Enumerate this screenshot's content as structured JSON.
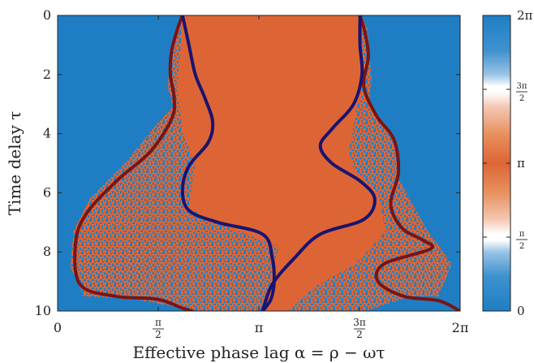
{
  "chart_data": {
    "type": "heatmap",
    "xlabel": "Effective phase lag α = ρ − ωτ",
    "ylabel": "Time delay τ",
    "x_range": [
      0,
      6.2832
    ],
    "y_range": [
      0,
      10
    ],
    "y_inverted": true,
    "x_ticks": [
      {
        "value": 0,
        "label": "0"
      },
      {
        "value": 1.5708,
        "label": "π/2",
        "num": "π",
        "den": "2"
      },
      {
        "value": 3.1416,
        "label": "π"
      },
      {
        "value": 4.7124,
        "label": "3π/2",
        "num": "3π",
        "den": "2"
      },
      {
        "value": 6.2832,
        "label": "2π"
      }
    ],
    "y_ticks": [
      {
        "value": 0,
        "label": "0"
      },
      {
        "value": 2,
        "label": "2"
      },
      {
        "value": 4,
        "label": "4"
      },
      {
        "value": 6,
        "label": "6"
      },
      {
        "value": 8,
        "label": "8"
      },
      {
        "value": 10,
        "label": "10"
      }
    ],
    "colorbar": {
      "range": [
        0,
        6.2832
      ],
      "ticks": [
        {
          "value": 0,
          "label": "0"
        },
        {
          "value": 1.5708,
          "label": "π/2",
          "num": "π",
          "den": "2"
        },
        {
          "value": 3.1416,
          "label": "π"
        },
        {
          "value": 4.7124,
          "label": "3π/2",
          "num": "3π",
          "den": "2"
        },
        {
          "value": 6.2832,
          "label": "2π"
        }
      ]
    },
    "colors": {
      "blue": "#1f7ec3",
      "orange": "#dd6535",
      "inner_curve": "#1a1372",
      "outer_curve": "#7a1414"
    },
    "regions": {
      "orange_core_left": [
        [
          1.94,
          0
        ],
        [
          1.92,
          1.0
        ],
        [
          1.87,
          2.5
        ],
        [
          1.95,
          4.0
        ],
        [
          2.15,
          5.0
        ],
        [
          2.1,
          5.7
        ],
        [
          2.05,
          6.5
        ],
        [
          2.45,
          7.0
        ],
        [
          3.45,
          7.8
        ],
        [
          3.32,
          9.0
        ],
        [
          3.2,
          10
        ],
        [
          3.6,
          10
        ],
        [
          4.0,
          9.2
        ],
        [
          4.65,
          8.4
        ],
        [
          5.12,
          7.3
        ],
        [
          5.0,
          6.0
        ],
        [
          4.62,
          5.2
        ],
        [
          4.55,
          4.6
        ],
        [
          4.65,
          3.3
        ],
        [
          4.75,
          2.5
        ],
        [
          4.72,
          0
        ]
      ],
      "speckle_outer": [
        [
          1.96,
          0
        ],
        [
          1.85,
          0.5
        ],
        [
          1.75,
          1.5
        ],
        [
          1.72,
          2.4
        ],
        [
          1.8,
          3.1
        ],
        [
          1.5,
          3.8
        ],
        [
          1.05,
          5.0
        ],
        [
          0.5,
          6.2
        ],
        [
          0.25,
          7.3
        ],
        [
          0.2,
          8.5
        ],
        [
          0.4,
          9.5
        ],
        [
          1.2,
          9.6
        ],
        [
          2.2,
          10
        ],
        [
          4.8,
          10
        ],
        [
          5.5,
          9.5
        ],
        [
          5.95,
          9.5
        ],
        [
          6.15,
          8.4
        ],
        [
          5.75,
          7.2
        ],
        [
          5.32,
          5.5
        ],
        [
          5.25,
          4.2
        ],
        [
          4.85,
          3.0
        ],
        [
          4.9,
          2.2
        ],
        [
          4.84,
          0.5
        ],
        [
          4.75,
          0
        ]
      ]
    },
    "curves": {
      "inner_left": {
        "x": [
          1.95,
          2.05,
          2.15,
          2.3,
          2.42,
          2.35,
          2.05,
          1.95,
          2.05,
          2.5,
          3.2,
          3.35,
          3.38,
          3.33,
          3.2
        ],
        "y": [
          0,
          1.0,
          2.0,
          2.8,
          3.6,
          4.3,
          5.1,
          5.9,
          6.6,
          7.0,
          7.4,
          8.2,
          9.0,
          9.6,
          10
        ]
      },
      "inner_right": {
        "x": [
          4.72,
          4.72,
          4.75,
          4.62,
          4.3,
          4.1,
          4.28,
          4.72,
          4.95,
          4.78,
          4.1,
          3.7,
          3.35,
          3.2
        ],
        "y": [
          0,
          1.0,
          2.0,
          3.0,
          3.8,
          4.4,
          5.0,
          5.6,
          6.2,
          6.9,
          7.4,
          8.2,
          9.1,
          10
        ]
      },
      "outer_left": {
        "x": [
          1.95,
          1.88,
          1.78,
          1.76,
          1.82,
          1.78,
          1.45,
          0.92,
          0.45,
          0.28,
          0.35,
          0.9,
          1.55,
          1.95,
          2.1
        ],
        "y": [
          0,
          0.4,
          1.2,
          2.0,
          2.8,
          3.5,
          4.6,
          5.6,
          6.7,
          7.7,
          9.1,
          9.5,
          9.6,
          9.9,
          10
        ]
      },
      "outer_right": {
        "x": [
          4.72,
          4.8,
          4.85,
          4.78,
          4.98,
          5.25,
          5.32,
          5.2,
          5.38,
          5.7,
          5.82,
          5.1,
          5.0,
          5.4,
          5.95,
          6.28
        ],
        "y": [
          0,
          0.6,
          1.4,
          2.4,
          3.4,
          4.2,
          5.3,
          6.4,
          7.2,
          7.6,
          7.9,
          8.4,
          9.0,
          9.5,
          9.65,
          10
        ]
      }
    }
  }
}
